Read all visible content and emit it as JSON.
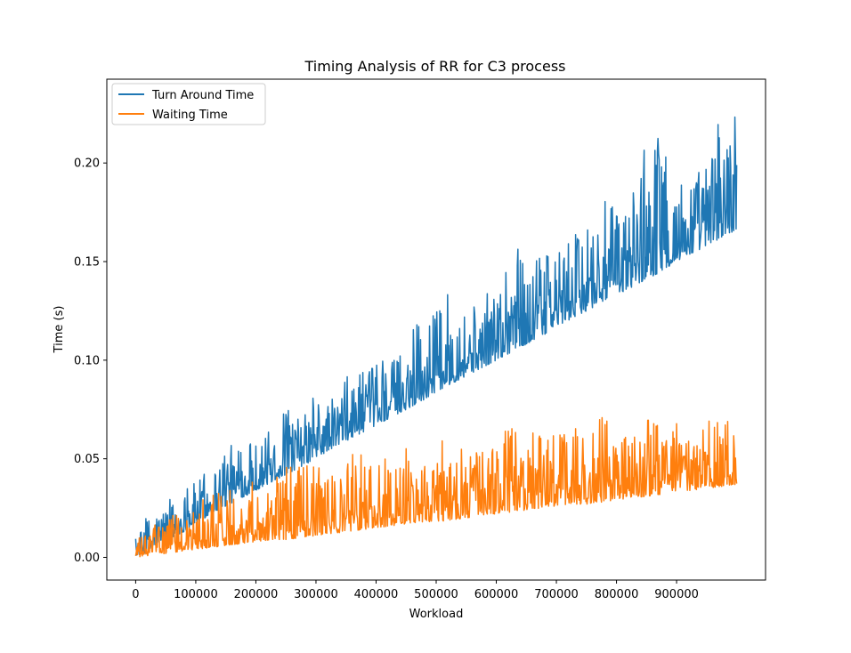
{
  "chart_data": {
    "type": "line",
    "title": "Timing Analysis of RR for C3 process",
    "xlabel": "Workload",
    "ylabel": "Time (s)",
    "xlim": [
      -48000,
      1048000
    ],
    "ylim": [
      -0.0115,
      0.2425
    ],
    "xticks": [
      0,
      100000,
      200000,
      300000,
      400000,
      500000,
      600000,
      700000,
      800000,
      900000
    ],
    "xtick_labels": [
      "0",
      "100000",
      "200000",
      "300000",
      "400000",
      "500000",
      "600000",
      "700000",
      "800000",
      "900000"
    ],
    "yticks": [
      0.0,
      0.05,
      0.1,
      0.15,
      0.2
    ],
    "ytick_labels": [
      "0.00",
      "0.05",
      "0.10",
      "0.15",
      "0.20"
    ],
    "legend": {
      "position": "top-left",
      "entries": [
        "Turn Around Time",
        "Waiting Time"
      ]
    },
    "grid": false,
    "series": [
      {
        "name": "Turn Around Time",
        "color": "#1f77b4",
        "x": [
          0,
          25000,
          50000,
          75000,
          100000,
          125000,
          150000,
          175000,
          200000,
          225000,
          250000,
          275000,
          300000,
          325000,
          350000,
          375000,
          400000,
          425000,
          450000,
          475000,
          500000,
          525000,
          550000,
          575000,
          600000,
          625000,
          650000,
          675000,
          700000,
          725000,
          750000,
          775000,
          800000,
          825000,
          850000,
          875000,
          900000,
          925000,
          950000,
          975000,
          1000000
        ],
        "low": [
          0.001,
          0.003,
          0.008,
          0.012,
          0.017,
          0.022,
          0.026,
          0.03,
          0.034,
          0.038,
          0.042,
          0.046,
          0.05,
          0.055,
          0.059,
          0.063,
          0.067,
          0.071,
          0.075,
          0.079,
          0.084,
          0.088,
          0.092,
          0.096,
          0.1,
          0.104,
          0.108,
          0.112,
          0.117,
          0.121,
          0.125,
          0.129,
          0.133,
          0.137,
          0.141,
          0.145,
          0.15,
          0.154,
          0.158,
          0.162,
          0.166
        ],
        "high": [
          0.01,
          0.025,
          0.029,
          0.034,
          0.041,
          0.045,
          0.064,
          0.054,
          0.062,
          0.068,
          0.08,
          0.073,
          0.084,
          0.083,
          0.093,
          0.097,
          0.101,
          0.103,
          0.113,
          0.121,
          0.127,
          0.143,
          0.131,
          0.135,
          0.142,
          0.171,
          0.152,
          0.157,
          0.16,
          0.165,
          0.168,
          0.19,
          0.18,
          0.185,
          0.225,
          0.21,
          0.198,
          0.201,
          0.205,
          0.23,
          0.225
        ]
      },
      {
        "name": "Waiting Time",
        "color": "#ff7f0e",
        "x": [
          0,
          25000,
          50000,
          75000,
          100000,
          125000,
          150000,
          175000,
          200000,
          225000,
          250000,
          275000,
          300000,
          325000,
          350000,
          375000,
          400000,
          425000,
          450000,
          475000,
          500000,
          525000,
          550000,
          575000,
          600000,
          625000,
          650000,
          675000,
          700000,
          725000,
          750000,
          775000,
          800000,
          825000,
          850000,
          875000,
          900000,
          925000,
          950000,
          975000,
          1000000
        ],
        "low": [
          0.0,
          0.001,
          0.002,
          0.003,
          0.004,
          0.005,
          0.006,
          0.007,
          0.008,
          0.009,
          0.009,
          0.01,
          0.011,
          0.012,
          0.013,
          0.014,
          0.015,
          0.016,
          0.017,
          0.018,
          0.018,
          0.019,
          0.02,
          0.021,
          0.022,
          0.023,
          0.024,
          0.025,
          0.026,
          0.027,
          0.027,
          0.028,
          0.029,
          0.03,
          0.031,
          0.032,
          0.033,
          0.034,
          0.035,
          0.036,
          0.037
        ],
        "high": [
          0.01,
          0.015,
          0.02,
          0.025,
          0.028,
          0.032,
          0.04,
          0.035,
          0.04,
          0.042,
          0.046,
          0.048,
          0.05,
          0.047,
          0.052,
          0.055,
          0.05,
          0.052,
          0.056,
          0.062,
          0.059,
          0.06,
          0.055,
          0.058,
          0.058,
          0.072,
          0.062,
          0.065,
          0.066,
          0.068,
          0.063,
          0.082,
          0.065,
          0.062,
          0.085,
          0.066,
          0.068,
          0.065,
          0.068,
          0.081,
          0.062
        ]
      }
    ]
  }
}
